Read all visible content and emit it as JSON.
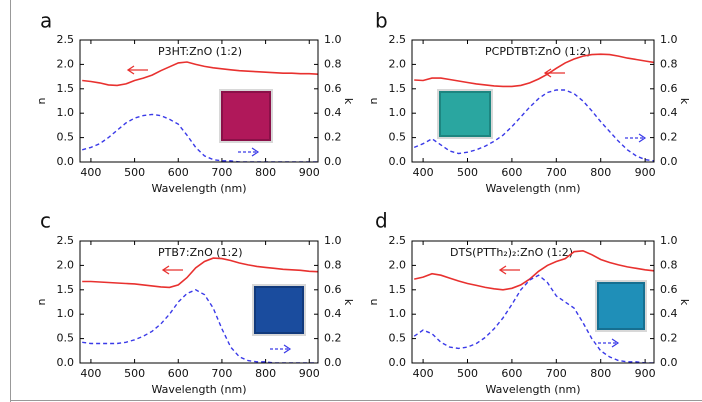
{
  "chart_data": [
    {
      "type": "line",
      "panel": "a",
      "title": "P3HT:ZnO (1:2)",
      "xlabel": "Wavelength (nm)",
      "ylabel": "n",
      "y2label": "k",
      "x": [
        380,
        400,
        420,
        440,
        460,
        480,
        500,
        520,
        540,
        560,
        580,
        600,
        620,
        640,
        660,
        680,
        700,
        720,
        740,
        760,
        780,
        800,
        820,
        840,
        860,
        880,
        900,
        920
      ],
      "xlim": [
        375,
        920
      ],
      "xticks": [
        400,
        500,
        600,
        700,
        800,
        900
      ],
      "ylim": [
        0,
        2.5
      ],
      "yticks": [
        {
          "value": 0,
          "label": "0.0"
        },
        0.5,
        {
          "value": 1,
          "label": "1.0"
        },
        1.5,
        {
          "value": 2,
          "label": "2.0"
        },
        2.5
      ],
      "y2lim": [
        0,
        1
      ],
      "y2ticks": [
        {
          "value": 0,
          "label": "0.0"
        },
        0.2,
        0.4,
        0.6,
        0.8,
        {
          "value": 1,
          "label": "1.0"
        }
      ],
      "series": [
        {
          "color": "#e8312f",
          "values": [
            1.67,
            1.65,
            1.62,
            1.58,
            1.57,
            1.6,
            1.67,
            1.72,
            1.78,
            1.87,
            1.95,
            2.03,
            2.05,
            2.0,
            1.96,
            1.93,
            1.91,
            1.89,
            1.87,
            1.86,
            1.85,
            1.84,
            1.83,
            1.82,
            1.82,
            1.81,
            1.81,
            1.8
          ]
        },
        {
          "color": "#3a3ae8",
          "axis": "y2",
          "dashed": true,
          "values": [
            0.1,
            0.12,
            0.15,
            0.2,
            0.26,
            0.32,
            0.36,
            0.38,
            0.39,
            0.38,
            0.35,
            0.31,
            0.22,
            0.12,
            0.05,
            0.02,
            0.01,
            0.01,
            0,
            0,
            0,
            0,
            0,
            0,
            0,
            0,
            0,
            0
          ]
        }
      ]
    },
    {
      "type": "line",
      "panel": "b",
      "title": "PCPDTBT:ZnO (1:2)",
      "xlabel": "Wavelength (nm)",
      "ylabel": "n",
      "y2label": "k",
      "x": [
        380,
        400,
        420,
        440,
        460,
        480,
        500,
        520,
        540,
        560,
        580,
        600,
        620,
        640,
        660,
        680,
        700,
        720,
        740,
        760,
        780,
        800,
        820,
        840,
        860,
        880,
        900,
        920
      ],
      "xlim": [
        375,
        920
      ],
      "xticks": [
        400,
        500,
        600,
        700,
        800,
        900
      ],
      "ylim": [
        0,
        2.5
      ],
      "yticks": [
        {
          "value": 0,
          "label": "0.0"
        },
        0.5,
        {
          "value": 1,
          "label": "1.0"
        },
        1.5,
        {
          "value": 2,
          "label": "2.0"
        },
        2.5
      ],
      "y2lim": [
        0,
        1
      ],
      "y2ticks": [
        {
          "value": 0,
          "label": "0.0"
        },
        0.2,
        0.4,
        0.6,
        0.8,
        {
          "value": 1,
          "label": "1.0"
        }
      ],
      "series": [
        {
          "color": "#e8312f",
          "values": [
            1.68,
            1.67,
            1.72,
            1.72,
            1.69,
            1.66,
            1.63,
            1.6,
            1.58,
            1.56,
            1.55,
            1.55,
            1.57,
            1.62,
            1.7,
            1.8,
            1.92,
            2.03,
            2.11,
            2.17,
            2.2,
            2.21,
            2.2,
            2.17,
            2.13,
            2.1,
            2.07,
            2.04
          ]
        },
        {
          "color": "#3a3ae8",
          "axis": "y2",
          "dashed": true,
          "values": [
            0.12,
            0.15,
            0.19,
            0.14,
            0.09,
            0.07,
            0.08,
            0.1,
            0.13,
            0.17,
            0.22,
            0.29,
            0.37,
            0.45,
            0.52,
            0.57,
            0.59,
            0.59,
            0.56,
            0.5,
            0.42,
            0.33,
            0.25,
            0.17,
            0.1,
            0.05,
            0.02,
            0.01
          ]
        }
      ]
    },
    {
      "type": "line",
      "panel": "c",
      "title": "PTB7:ZnO (1:2)",
      "xlabel": "Wavelength (nm)",
      "ylabel": "n",
      "y2label": "k",
      "x": [
        380,
        400,
        420,
        440,
        460,
        480,
        500,
        520,
        540,
        560,
        580,
        600,
        620,
        640,
        660,
        680,
        700,
        720,
        740,
        760,
        780,
        800,
        820,
        840,
        860,
        880,
        900,
        920
      ],
      "xlim": [
        375,
        920
      ],
      "xticks": [
        400,
        500,
        600,
        700,
        800,
        900
      ],
      "ylim": [
        0,
        2.5
      ],
      "yticks": [
        {
          "value": 0,
          "label": "0.0"
        },
        0.5,
        {
          "value": 1,
          "label": "1.0"
        },
        1.5,
        {
          "value": 2,
          "label": "2.0"
        },
        2.5
      ],
      "y2lim": [
        0,
        1
      ],
      "y2ticks": [
        {
          "value": 0,
          "label": "0.0"
        },
        0.2,
        0.4,
        0.6,
        0.8,
        {
          "value": 1,
          "label": "1.0"
        }
      ],
      "series": [
        {
          "color": "#e8312f",
          "values": [
            1.67,
            1.67,
            1.66,
            1.65,
            1.64,
            1.63,
            1.62,
            1.6,
            1.58,
            1.56,
            1.55,
            1.6,
            1.75,
            1.95,
            2.08,
            2.15,
            2.14,
            2.1,
            2.05,
            2.01,
            1.98,
            1.96,
            1.94,
            1.92,
            1.91,
            1.9,
            1.88,
            1.87
          ]
        },
        {
          "color": "#3a3ae8",
          "axis": "y2",
          "dashed": true,
          "values": [
            0.17,
            0.16,
            0.16,
            0.16,
            0.16,
            0.17,
            0.19,
            0.22,
            0.26,
            0.32,
            0.4,
            0.5,
            0.57,
            0.6,
            0.56,
            0.45,
            0.28,
            0.13,
            0.05,
            0.02,
            0.01,
            0.01,
            0,
            0,
            0,
            0,
            0,
            0
          ]
        }
      ]
    },
    {
      "type": "line",
      "panel": "d",
      "title": "DTS(PTTh₂)₂:ZnO (1:2)",
      "xlabel": "Wavelength (nm)",
      "ylabel": "n",
      "y2label": "k",
      "x": [
        380,
        400,
        420,
        440,
        460,
        480,
        500,
        520,
        540,
        560,
        580,
        600,
        620,
        640,
        660,
        680,
        700,
        720,
        740,
        760,
        780,
        800,
        820,
        840,
        860,
        880,
        900,
        920
      ],
      "xlim": [
        375,
        920
      ],
      "xticks": [
        400,
        500,
        600,
        700,
        800,
        900
      ],
      "ylim": [
        0,
        2.5
      ],
      "yticks": [
        {
          "value": 0,
          "label": "0.0"
        },
        0.5,
        {
          "value": 1,
          "label": "1.0"
        },
        1.5,
        {
          "value": 2,
          "label": "2.0"
        },
        2.5
      ],
      "y2lim": [
        0,
        1
      ],
      "y2ticks": [
        {
          "value": 0,
          "label": "0.0"
        },
        0.2,
        0.4,
        0.6,
        0.8,
        {
          "value": 1,
          "label": "1.0"
        }
      ],
      "series": [
        {
          "color": "#e8312f",
          "values": [
            1.72,
            1.76,
            1.83,
            1.8,
            1.74,
            1.68,
            1.63,
            1.59,
            1.55,
            1.52,
            1.5,
            1.53,
            1.6,
            1.72,
            1.88,
            2.0,
            2.08,
            2.14,
            2.28,
            2.3,
            2.22,
            2.12,
            2.06,
            2.01,
            1.97,
            1.94,
            1.91,
            1.89
          ]
        },
        {
          "color": "#3a3ae8",
          "axis": "y2",
          "dashed": true,
          "values": [
            0.22,
            0.27,
            0.24,
            0.17,
            0.13,
            0.12,
            0.13,
            0.16,
            0.21,
            0.28,
            0.37,
            0.48,
            0.6,
            0.68,
            0.72,
            0.66,
            0.55,
            0.5,
            0.45,
            0.33,
            0.2,
            0.1,
            0.05,
            0.02,
            0.01,
            0.01,
            0,
            0
          ]
        }
      ]
    }
  ]
}
